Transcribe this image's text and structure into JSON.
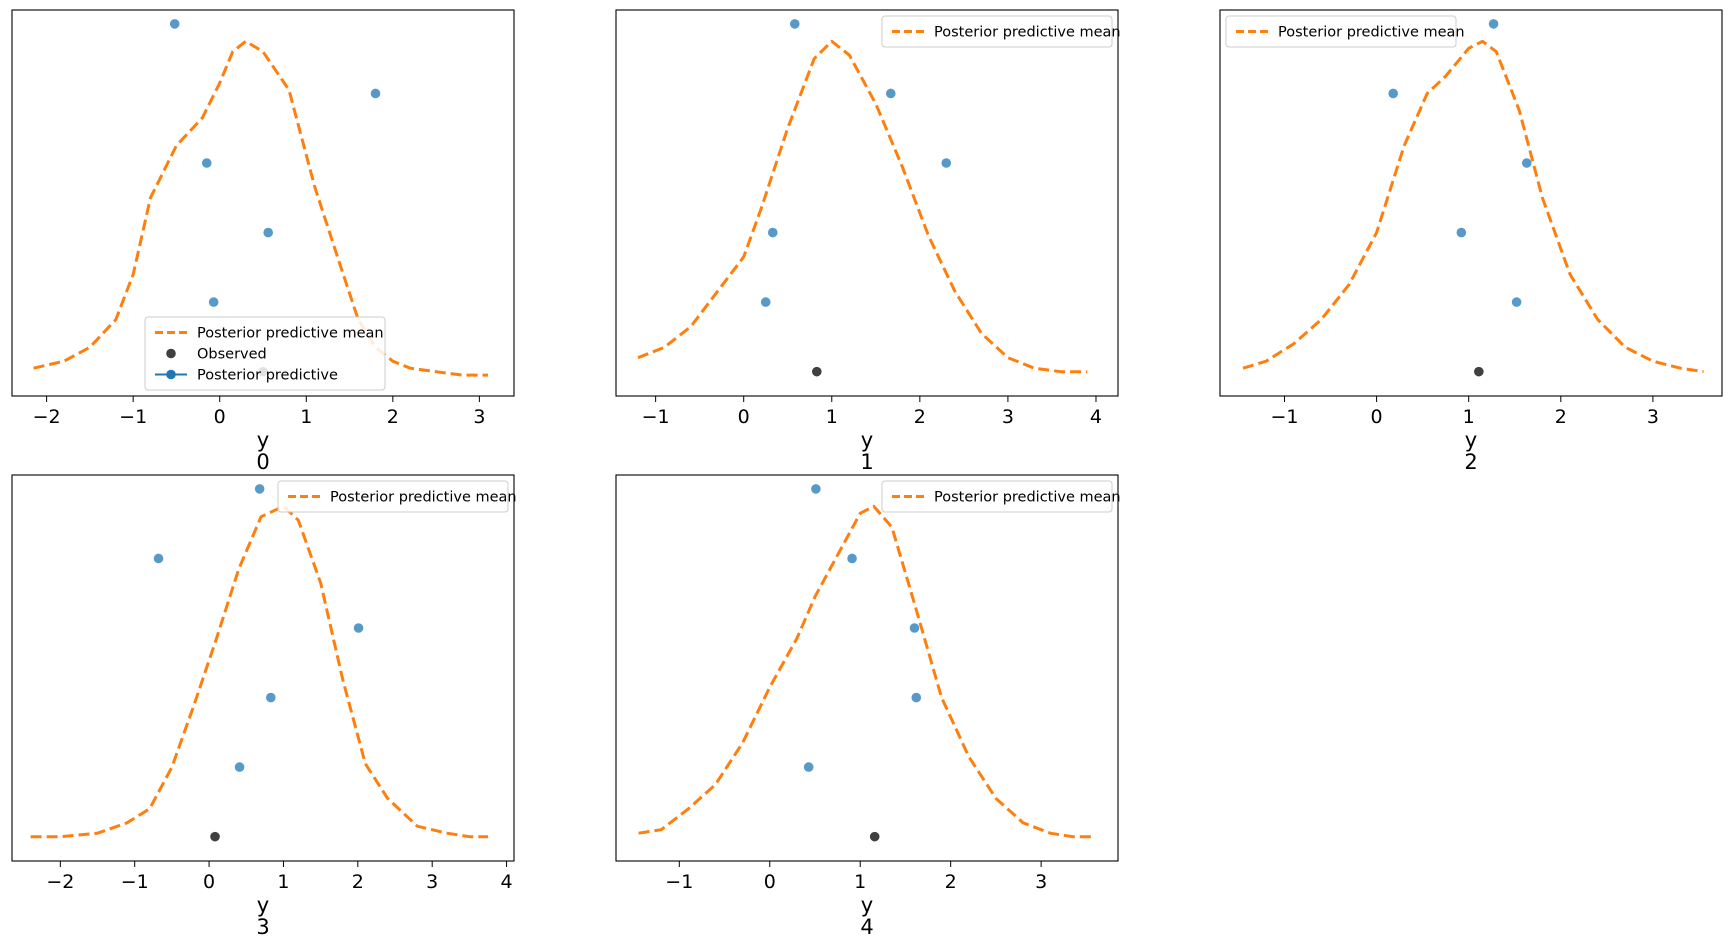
{
  "figure": {
    "colors": {
      "mean_line": "#ff7f0e",
      "predictive": "#1f77b4",
      "observed": "#000000"
    },
    "legend_labels": {
      "mean": "Posterior predictive mean",
      "observed": "Observed",
      "predictive": "Posterior predictive"
    }
  },
  "chart_data": [
    {
      "type": "line",
      "panel_label": "0",
      "xlabel": "y",
      "xlim": [
        -2.4,
        3.4
      ],
      "ylim": [
        -0.02,
        1.09
      ],
      "xticks": [
        "−2",
        "−1",
        "0",
        "1",
        "2",
        "3"
      ],
      "xtick_values": [
        -2,
        -1,
        0,
        1,
        2,
        3
      ],
      "legend": "lower-center",
      "legend_entries": [
        "mean",
        "observed",
        "predictive"
      ],
      "series": [
        {
          "kind": "mean-line",
          "x": [
            -2.15,
            -1.8,
            -1.5,
            -1.2,
            -1.0,
            -0.8,
            -0.5,
            -0.2,
            0.0,
            0.15,
            0.3,
            0.5,
            0.8,
            1.1,
            1.4,
            1.6,
            1.8,
            2.0,
            2.2,
            2.5,
            2.8,
            3.1
          ],
          "y": [
            0.06,
            0.08,
            0.12,
            0.2,
            0.33,
            0.55,
            0.7,
            0.78,
            0.88,
            0.97,
            1.0,
            0.97,
            0.86,
            0.58,
            0.35,
            0.2,
            0.12,
            0.08,
            0.06,
            0.05,
            0.04,
            0.04
          ]
        },
        {
          "kind": "predictive-points",
          "x": [
            -0.52,
            1.8,
            -0.15,
            0.56,
            -0.07
          ],
          "y": [
            1.05,
            0.85,
            0.65,
            0.45,
            0.25
          ]
        },
        {
          "kind": "observed-points",
          "x": [
            0.5
          ],
          "y": [
            0.05
          ]
        }
      ]
    },
    {
      "type": "line",
      "panel_label": "1",
      "xlabel": "y",
      "xlim": [
        -1.45,
        4.25
      ],
      "ylim": [
        -0.02,
        1.09
      ],
      "xticks": [
        "−1",
        "0",
        "1",
        "2",
        "3",
        "4"
      ],
      "xtick_values": [
        -1,
        0,
        1,
        2,
        3,
        4
      ],
      "legend": "upper-right",
      "legend_entries": [
        "mean"
      ],
      "series": [
        {
          "kind": "mean-line",
          "x": [
            -1.2,
            -0.9,
            -0.6,
            -0.3,
            0.0,
            0.2,
            0.5,
            0.8,
            1.0,
            1.2,
            1.5,
            1.8,
            2.1,
            2.4,
            2.7,
            3.0,
            3.3,
            3.6,
            3.9
          ],
          "y": [
            0.09,
            0.12,
            0.18,
            0.28,
            0.38,
            0.52,
            0.75,
            0.95,
            1.0,
            0.96,
            0.82,
            0.64,
            0.44,
            0.28,
            0.16,
            0.09,
            0.06,
            0.05,
            0.05
          ]
        },
        {
          "kind": "predictive-points",
          "x": [
            0.58,
            1.67,
            2.3,
            0.33,
            0.25
          ],
          "y": [
            1.05,
            0.85,
            0.65,
            0.45,
            0.25
          ]
        },
        {
          "kind": "observed-points",
          "x": [
            0.83
          ],
          "y": [
            0.05
          ]
        }
      ]
    },
    {
      "type": "line",
      "panel_label": "2",
      "xlabel": "y",
      "xlim": [
        -1.7,
        3.75
      ],
      "ylim": [
        -0.02,
        1.09
      ],
      "xticks": [
        "−1",
        "0",
        "1",
        "2",
        "3"
      ],
      "xtick_values": [
        -1,
        0,
        1,
        2,
        3
      ],
      "legend": "upper-left",
      "legend_entries": [
        "mean"
      ],
      "series": [
        {
          "kind": "mean-line",
          "x": [
            -1.45,
            -1.2,
            -0.9,
            -0.6,
            -0.3,
            0.0,
            0.3,
            0.55,
            0.75,
            1.0,
            1.15,
            1.3,
            1.55,
            1.8,
            2.1,
            2.4,
            2.7,
            3.0,
            3.3,
            3.55
          ],
          "y": [
            0.06,
            0.08,
            0.13,
            0.2,
            0.3,
            0.45,
            0.7,
            0.85,
            0.9,
            0.98,
            1.0,
            0.97,
            0.8,
            0.55,
            0.33,
            0.2,
            0.12,
            0.08,
            0.06,
            0.05
          ]
        },
        {
          "kind": "predictive-points",
          "x": [
            1.27,
            0.18,
            1.63,
            0.92,
            1.52
          ],
          "y": [
            1.05,
            0.85,
            0.65,
            0.45,
            0.25
          ]
        },
        {
          "kind": "observed-points",
          "x": [
            1.11
          ],
          "y": [
            0.05
          ]
        }
      ]
    },
    {
      "type": "line",
      "panel_label": "3",
      "xlabel": "y",
      "xlim": [
        -2.65,
        4.1
      ],
      "ylim": [
        -0.02,
        1.09
      ],
      "xticks": [
        "−2",
        "−1",
        "0",
        "1",
        "2",
        "3",
        "4"
      ],
      "xtick_values": [
        -2,
        -1,
        0,
        1,
        2,
        3,
        4
      ],
      "legend": "upper-right",
      "legend_entries": [
        "mean"
      ],
      "series": [
        {
          "kind": "mean-line",
          "x": [
            -2.4,
            -2.0,
            -1.5,
            -1.1,
            -0.8,
            -0.5,
            -0.2,
            0.1,
            0.4,
            0.7,
            1.0,
            1.2,
            1.5,
            1.8,
            2.1,
            2.4,
            2.8,
            3.2,
            3.5,
            3.75
          ],
          "y": [
            0.05,
            0.05,
            0.06,
            0.09,
            0.13,
            0.25,
            0.43,
            0.62,
            0.82,
            0.97,
            1.0,
            0.96,
            0.78,
            0.5,
            0.26,
            0.16,
            0.08,
            0.06,
            0.05,
            0.05
          ]
        },
        {
          "kind": "predictive-points",
          "x": [
            0.68,
            -0.68,
            2.01,
            0.83,
            0.41
          ],
          "y": [
            1.05,
            0.85,
            0.65,
            0.45,
            0.25
          ]
        },
        {
          "kind": "observed-points",
          "x": [
            0.08
          ],
          "y": [
            0.05
          ]
        }
      ]
    },
    {
      "type": "line",
      "panel_label": "4",
      "xlabel": "y",
      "xlim": [
        -1.7,
        3.85
      ],
      "ylim": [
        -0.02,
        1.09
      ],
      "xticks": [
        "−1",
        "0",
        "1",
        "2",
        "3"
      ],
      "xtick_values": [
        -1,
        0,
        1,
        2,
        3
      ],
      "legend": "upper-right",
      "legend_entries": [
        "mean"
      ],
      "series": [
        {
          "kind": "mean-line",
          "x": [
            -1.45,
            -1.2,
            -0.9,
            -0.6,
            -0.3,
            0.0,
            0.3,
            0.5,
            0.75,
            1.0,
            1.15,
            1.35,
            1.6,
            1.9,
            2.2,
            2.5,
            2.8,
            3.1,
            3.35,
            3.55
          ],
          "y": [
            0.06,
            0.07,
            0.13,
            0.2,
            0.32,
            0.48,
            0.62,
            0.74,
            0.86,
            0.98,
            1.0,
            0.94,
            0.72,
            0.45,
            0.28,
            0.16,
            0.09,
            0.06,
            0.05,
            0.05
          ]
        },
        {
          "kind": "predictive-points",
          "x": [
            0.51,
            0.91,
            1.6,
            1.62,
            0.43
          ],
          "y": [
            1.05,
            0.85,
            0.65,
            0.45,
            0.25
          ]
        },
        {
          "kind": "observed-points",
          "x": [
            1.16
          ],
          "y": [
            0.05
          ]
        }
      ]
    }
  ]
}
